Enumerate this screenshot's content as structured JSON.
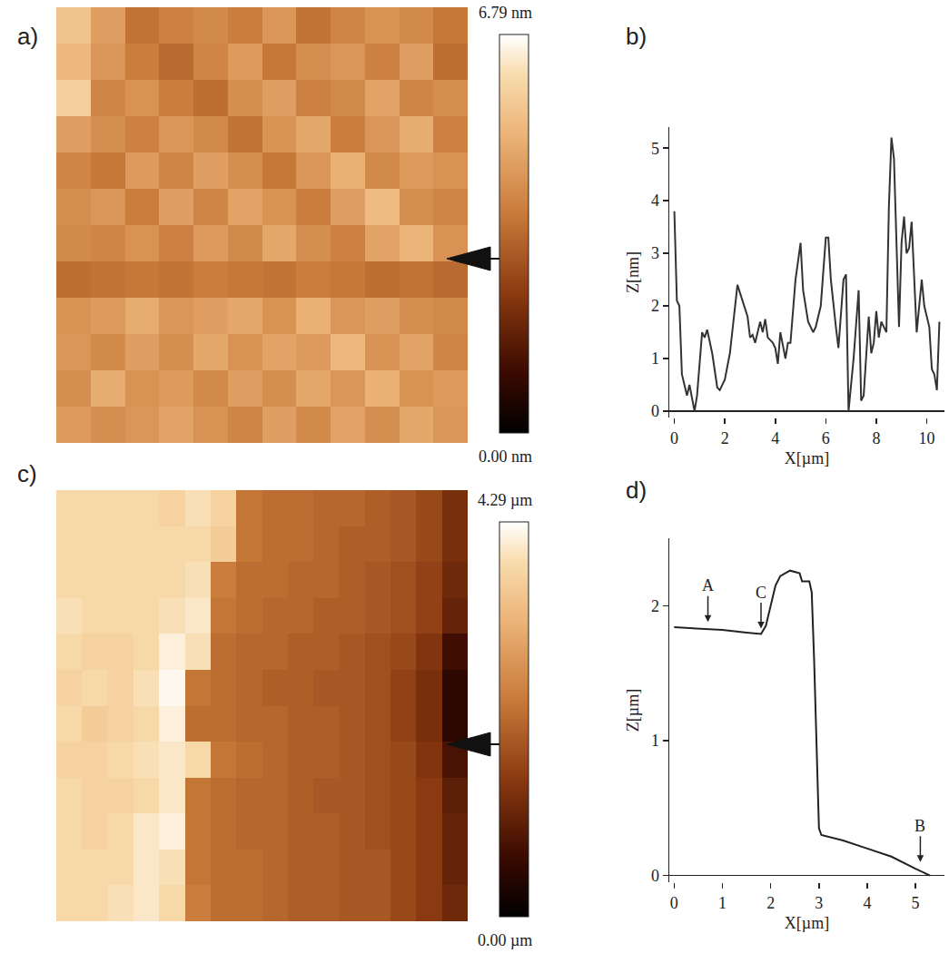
{
  "chart_data": [
    {
      "type": "heatmap",
      "panel": "a)",
      "tick_labels": false,
      "zlim": [
        0,
        6.79
      ],
      "zticks": [
        {
          "value": 6.79,
          "label": "6.79 nm"
        },
        {
          "value": 0,
          "label": "0.00 nm"
        }
      ],
      "z": [
        [
          5.5,
          4.6,
          3.6,
          3.9,
          4.1,
          3.8,
          4.4,
          3.6,
          4.0,
          4.3,
          4.1,
          3.7
        ],
        [
          5.2,
          4.4,
          3.8,
          3.4,
          4.0,
          4.5,
          3.7,
          4.2,
          4.4,
          3.9,
          4.6,
          3.5
        ],
        [
          5.8,
          4.0,
          4.3,
          3.8,
          3.5,
          4.2,
          4.6,
          3.9,
          4.1,
          4.7,
          4.0,
          4.2
        ],
        [
          4.6,
          4.2,
          3.9,
          4.4,
          4.1,
          3.6,
          4.3,
          4.8,
          3.8,
          4.4,
          4.9,
          3.9
        ],
        [
          4.0,
          3.7,
          4.5,
          4.0,
          4.6,
          4.2,
          3.7,
          4.4,
          5.0,
          4.1,
          4.5,
          4.3
        ],
        [
          4.2,
          4.4,
          3.8,
          4.6,
          4.0,
          4.7,
          4.3,
          3.8,
          4.6,
          5.3,
          4.2,
          4.0
        ],
        [
          4.1,
          4.0,
          4.3,
          3.9,
          4.5,
          4.1,
          4.8,
          4.2,
          3.9,
          4.7,
          5.1,
          4.3
        ],
        [
          3.5,
          3.6,
          3.7,
          3.6,
          3.8,
          3.7,
          3.6,
          3.8,
          3.7,
          3.5,
          3.6,
          3.4
        ],
        [
          4.3,
          4.5,
          4.9,
          4.4,
          4.6,
          4.8,
          4.3,
          5.0,
          4.4,
          4.6,
          4.2,
          4.1
        ],
        [
          4.4,
          4.1,
          4.6,
          4.2,
          4.8,
          4.3,
          4.7,
          4.5,
          5.2,
          4.3,
          4.7,
          4.0
        ],
        [
          4.2,
          4.9,
          4.3,
          4.5,
          4.1,
          4.6,
          4.2,
          4.8,
          4.4,
          5.0,
          4.3,
          4.5
        ],
        [
          4.5,
          4.2,
          4.4,
          4.7,
          4.3,
          4.0,
          4.6,
          4.1,
          4.7,
          4.2,
          4.8,
          4.4
        ]
      ]
    },
    {
      "type": "line",
      "panel": "b)",
      "xlabel": "X[µm]",
      "ylabel": "Z[nm]",
      "color": "#333333",
      "line_style": "solid",
      "grid": false,
      "xlim": [
        -0.2,
        10.7
      ],
      "ylim": [
        -0.12,
        5.4
      ],
      "xticks": [
        0,
        2,
        4,
        6,
        8,
        10
      ],
      "yticks": [
        0,
        1,
        2,
        3,
        4,
        5
      ],
      "x": [
        0,
        0.1,
        0.2,
        0.3,
        0.5,
        0.6,
        0.8,
        0.9,
        1.1,
        1.2,
        1.3,
        1.5,
        1.7,
        1.8,
        2.0,
        2.2,
        2.5,
        2.7,
        2.9,
        3.0,
        3.1,
        3.2,
        3.4,
        3.5,
        3.6,
        3.7,
        3.9,
        4.0,
        4.1,
        4.2,
        4.4,
        4.5,
        4.6,
        4.8,
        5.0,
        5.1,
        5.3,
        5.5,
        5.6,
        5.8,
        6.0,
        6.1,
        6.2,
        6.4,
        6.5,
        6.7,
        6.8,
        6.9,
        7.1,
        7.3,
        7.4,
        7.5,
        7.7,
        7.8,
        7.9,
        8.0,
        8.1,
        8.2,
        8.4,
        8.5,
        8.6,
        8.7,
        8.9,
        9.0,
        9.1,
        9.2,
        9.3,
        9.4,
        9.6,
        9.8,
        9.9,
        10.1,
        10.2,
        10.3,
        10.4,
        10.5
      ],
      "values": [
        3.8,
        2.1,
        2.0,
        0.7,
        0.3,
        0.5,
        0.0,
        0.3,
        1.5,
        1.4,
        1.55,
        1.1,
        0.45,
        0.4,
        0.6,
        1.1,
        2.4,
        2.1,
        1.8,
        1.4,
        1.45,
        1.3,
        1.7,
        1.5,
        1.75,
        1.4,
        1.3,
        1.2,
        0.9,
        1.5,
        1.0,
        1.3,
        1.3,
        2.5,
        3.2,
        2.3,
        1.7,
        1.5,
        1.6,
        2.0,
        3.3,
        3.3,
        2.5,
        1.6,
        1.2,
        2.5,
        2.6,
        0.0,
        1.0,
        2.3,
        0.2,
        0.3,
        1.8,
        1.1,
        1.3,
        1.9,
        1.4,
        1.7,
        1.5,
        3.9,
        5.2,
        4.8,
        1.6,
        3.2,
        3.7,
        3.0,
        3.1,
        3.6,
        1.5,
        2.5,
        2.0,
        1.6,
        0.8,
        0.7,
        0.4,
        1.7
      ]
    },
    {
      "type": "heatmap",
      "panel": "c)",
      "tick_labels": false,
      "zlim": [
        0,
        4.29
      ],
      "zticks": [
        {
          "value": 4.29,
          "label": "4.29 µm"
        },
        {
          "value": 0,
          "label": "0.00 µm"
        }
      ],
      "z": [
        [
          3.8,
          3.8,
          3.8,
          3.8,
          3.7,
          3.9,
          3.7,
          2.3,
          2.2,
          2.2,
          2.1,
          2.1,
          2.0,
          1.9,
          1.7,
          1.3
        ],
        [
          3.8,
          3.8,
          3.8,
          3.8,
          3.8,
          3.8,
          3.6,
          2.3,
          2.2,
          2.2,
          2.1,
          2.0,
          2.0,
          1.9,
          1.7,
          1.3
        ],
        [
          3.8,
          3.8,
          3.8,
          3.8,
          3.8,
          3.9,
          2.4,
          2.2,
          2.2,
          2.1,
          2.1,
          2.0,
          1.9,
          1.8,
          1.6,
          1.2
        ],
        [
          3.9,
          3.8,
          3.8,
          3.8,
          3.9,
          4.0,
          2.3,
          2.2,
          2.1,
          2.1,
          2.0,
          2.0,
          1.9,
          1.8,
          1.6,
          1.1
        ],
        [
          3.8,
          3.7,
          3.7,
          3.8,
          4.1,
          3.9,
          2.2,
          2.1,
          2.1,
          2.0,
          2.0,
          1.9,
          1.8,
          1.7,
          1.4,
          0.7
        ],
        [
          3.7,
          3.8,
          3.7,
          3.9,
          4.2,
          2.3,
          2.2,
          2.1,
          2.0,
          2.0,
          1.9,
          1.9,
          1.8,
          1.6,
          1.3,
          0.5
        ],
        [
          3.8,
          3.6,
          3.7,
          3.8,
          4.1,
          2.2,
          2.2,
          2.1,
          2.1,
          2.0,
          2.0,
          1.9,
          1.8,
          1.6,
          1.3,
          0.5
        ],
        [
          3.7,
          3.7,
          3.8,
          3.9,
          4.0,
          3.8,
          2.3,
          2.2,
          2.1,
          2.0,
          2.0,
          1.9,
          1.8,
          1.7,
          1.4,
          0.8
        ],
        [
          3.8,
          3.7,
          3.7,
          3.8,
          4.0,
          2.3,
          2.2,
          2.1,
          2.1,
          2.0,
          1.9,
          1.9,
          1.8,
          1.7,
          1.5,
          1.0
        ],
        [
          3.8,
          3.7,
          3.8,
          4.0,
          4.1,
          2.3,
          2.2,
          2.1,
          2.1,
          2.0,
          2.0,
          1.9,
          1.8,
          1.7,
          1.5,
          1.1
        ],
        [
          3.8,
          3.8,
          3.8,
          4.0,
          3.9,
          2.3,
          2.2,
          2.2,
          2.1,
          2.0,
          2.0,
          1.9,
          1.9,
          1.7,
          1.5,
          1.1
        ],
        [
          3.8,
          3.8,
          3.9,
          4.0,
          3.8,
          2.4,
          2.2,
          2.2,
          2.1,
          2.0,
          2.0,
          1.9,
          1.9,
          1.7,
          1.5,
          1.2
        ]
      ]
    },
    {
      "type": "line",
      "panel": "d)",
      "xlabel": "X[µm]",
      "ylabel": "Z[µm]",
      "color": "#222222",
      "line_style": "solid",
      "grid": false,
      "xlim": [
        -0.1,
        5.6
      ],
      "ylim": [
        -0.05,
        2.5
      ],
      "xticks": [
        0,
        1,
        2,
        3,
        4,
        5
      ],
      "yticks": [
        0,
        1,
        2
      ],
      "x": [
        0,
        0.5,
        1.0,
        1.5,
        1.8,
        1.9,
        2.0,
        2.1,
        2.2,
        2.4,
        2.6,
        2.65,
        2.8,
        2.85,
        2.9,
        2.95,
        3.0,
        3.05,
        3.5,
        4.0,
        4.5,
        5.0,
        5.3
      ],
      "values": [
        1.84,
        1.83,
        1.82,
        1.8,
        1.79,
        1.85,
        2.0,
        2.15,
        2.22,
        2.26,
        2.24,
        2.18,
        2.18,
        2.1,
        1.6,
        0.9,
        0.35,
        0.3,
        0.26,
        0.2,
        0.14,
        0.05,
        0.0
      ],
      "annotations": [
        {
          "text": "A",
          "x": 0.7,
          "y": 1.88
        },
        {
          "text": "C",
          "x": 1.8,
          "y": 1.83
        },
        {
          "text": "B",
          "x": 5.1,
          "y": 0.1
        }
      ]
    }
  ]
}
